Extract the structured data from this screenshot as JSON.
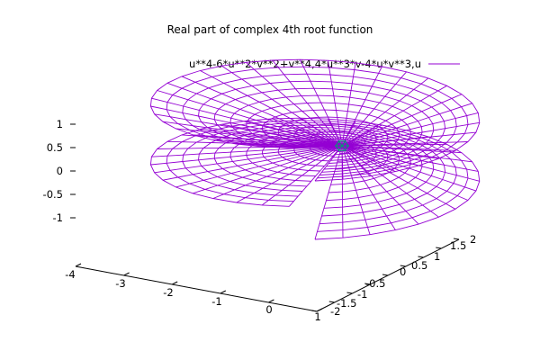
{
  "chart_data": {
    "type": "surface-3d",
    "title": "Real part of complex 4th root function",
    "series": [
      {
        "name": "u**4-6*u**2*v**2+v**4,4*u**3*v-4*u*v**3,u",
        "color": "#9400d3",
        "interior_color": "#009e73"
      }
    ],
    "parametric": {
      "x": "u**4-6*u**2*v**2+v**4",
      "y": "4*u**3*v-4*u*v**3",
      "z": "u"
    },
    "z_ticks": [
      "1",
      "0.5",
      "0",
      "-0.5",
      "-1"
    ],
    "x_ticks": [
      "-4",
      "-3",
      "-2",
      "-1",
      "0",
      "1"
    ],
    "y_ticks": [
      "-2",
      "-1.5",
      "-1",
      "-0.5",
      "0",
      "0.5",
      "1",
      "1.5",
      "2"
    ],
    "zlim": [
      -1.15,
      1.15
    ],
    "xlim": [
      -4,
      1
    ],
    "ylim": [
      -2,
      2
    ],
    "legend_position": "top-right",
    "grid": false
  }
}
